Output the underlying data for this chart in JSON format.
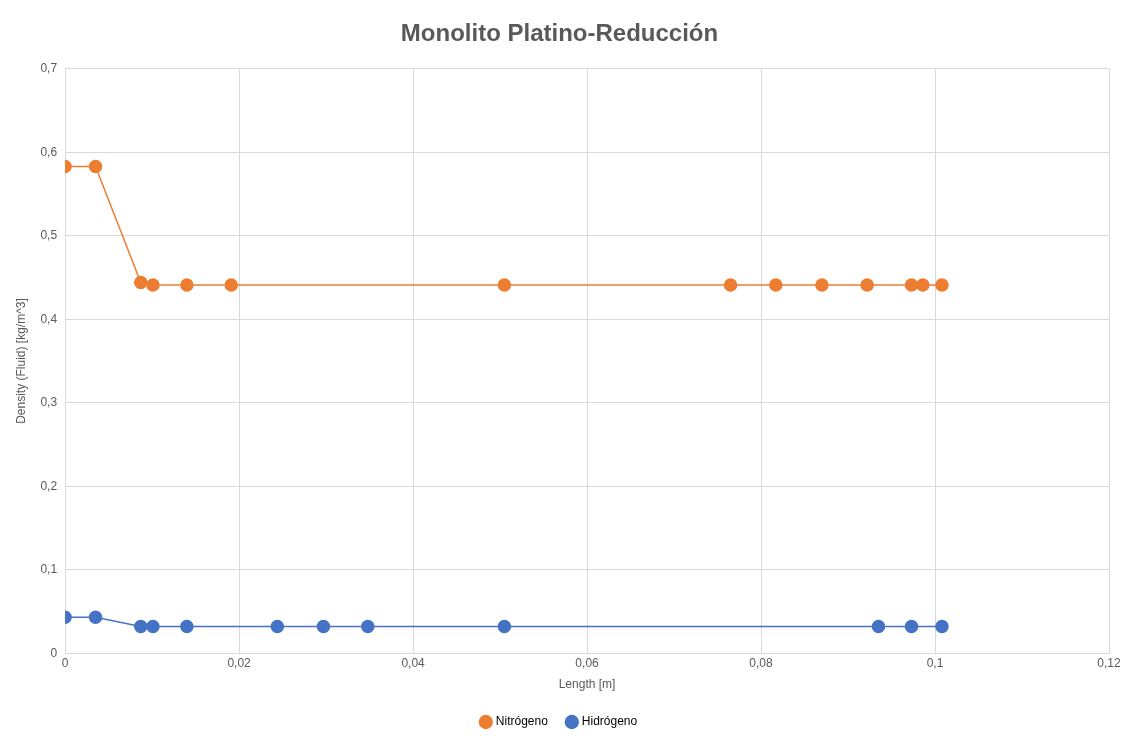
{
  "chart_data": {
    "type": "line",
    "title": "Monolito Platino-Reducción",
    "xlabel": "Length [m]",
    "ylabel": "Density (Fluid) [kg/m^3]",
    "series": [
      {
        "name": "Nitrógeno",
        "color": "#ed7d31",
        "x": [
          0,
          0.0035,
          0.0087,
          0.0101,
          0.014,
          0.0191,
          0.0505,
          0.0765,
          0.0817,
          0.087,
          0.0922,
          0.0973,
          0.0986,
          0.1008
        ],
        "values": [
          0.583,
          0.583,
          0.444,
          0.441,
          0.441,
          0.441,
          0.441,
          0.441,
          0.441,
          0.441,
          0.441,
          0.441,
          0.441,
          0.441
        ]
      },
      {
        "name": "Hidrógeno",
        "color": "#4472c4",
        "x": [
          0,
          0.0035,
          0.0087,
          0.0101,
          0.014,
          0.0244,
          0.0297,
          0.0348,
          0.0505,
          0.0935,
          0.0973,
          0.1008
        ],
        "values": [
          0.043,
          0.043,
          0.032,
          0.032,
          0.032,
          0.032,
          0.032,
          0.032,
          0.032,
          0.032,
          0.032,
          0.032
        ]
      }
    ],
    "xlim": [
      0,
      0.12
    ],
    "xticks": [
      0,
      {
        "value": 0.02,
        "label": "0,02"
      },
      {
        "value": 0.04,
        "label": "0,04"
      },
      {
        "value": 0.06,
        "label": "0,06"
      },
      {
        "value": 0.08,
        "label": "0,08"
      },
      {
        "value": 0.1,
        "label": "0,1"
      },
      {
        "value": 0.12,
        "label": "0,12"
      }
    ],
    "ylim": [
      0,
      0.7
    ],
    "yticks": [
      0,
      {
        "value": 0.1,
        "label": "0,1"
      },
      {
        "value": 0.2,
        "label": "0,2"
      },
      {
        "value": 0.3,
        "label": "0,3"
      },
      {
        "value": 0.4,
        "label": "0,4"
      },
      {
        "value": 0.5,
        "label": "0,5"
      },
      {
        "value": 0.6,
        "label": "0,6"
      },
      {
        "value": 0.7,
        "label": "0,7"
      }
    ],
    "grid": true,
    "legend": "bottom",
    "marker": "circle",
    "line_style": "solid"
  }
}
